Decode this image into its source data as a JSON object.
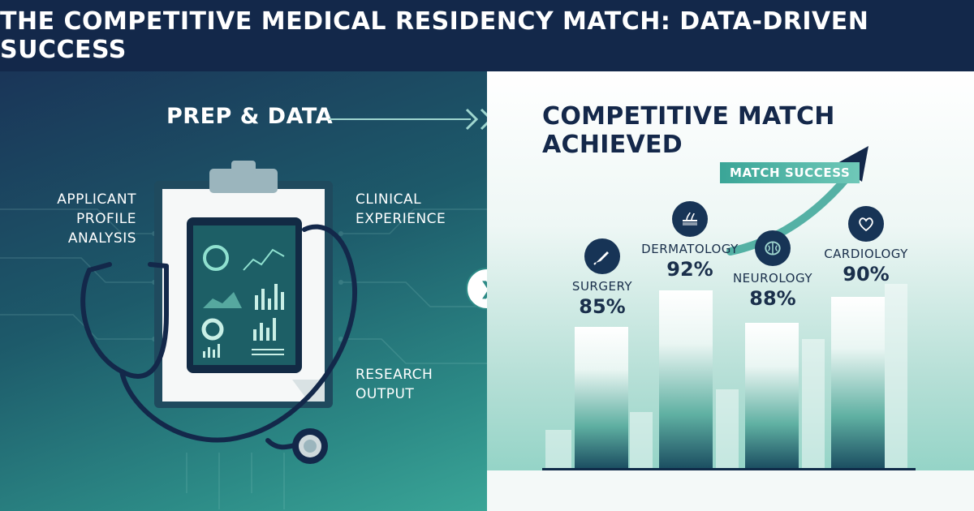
{
  "header": {
    "title": "THE COMPETITIVE MEDICAL RESIDENCY MATCH: DATA-DRIVEN SUCCESS"
  },
  "left_panel": {
    "title": "PREP & DATA",
    "labels": {
      "applicant": "APPLICANT PROFILE ANALYSIS",
      "clinical": "CLINICAL EXPERIENCE",
      "research": "RESEARCH OUTPUT"
    }
  },
  "right_panel": {
    "title": "COMPETITIVE MATCH ACHIEVED",
    "match_badge": "MATCH SUCCESS",
    "specialties": [
      {
        "name": "SURGERY",
        "rate": "85%",
        "icon": "scalpel-icon"
      },
      {
        "name": "DERMATOLOGY",
        "rate": "92%",
        "icon": "skin-follicle-icon"
      },
      {
        "name": "NEUROLOGY",
        "rate": "88%",
        "icon": "brain-icon"
      },
      {
        "name": "CARDIOLOGY",
        "rate": "90%",
        "icon": "heart-icon"
      }
    ]
  },
  "colors": {
    "navy": "#13284a",
    "teal": "#2c8a86",
    "mint": "#3aa597"
  },
  "icons": [
    "clipboard-icon",
    "tablet-dashboard-icon",
    "stethoscope-icon",
    "chevron-right-icon",
    "trend-arrow-icon"
  ]
}
